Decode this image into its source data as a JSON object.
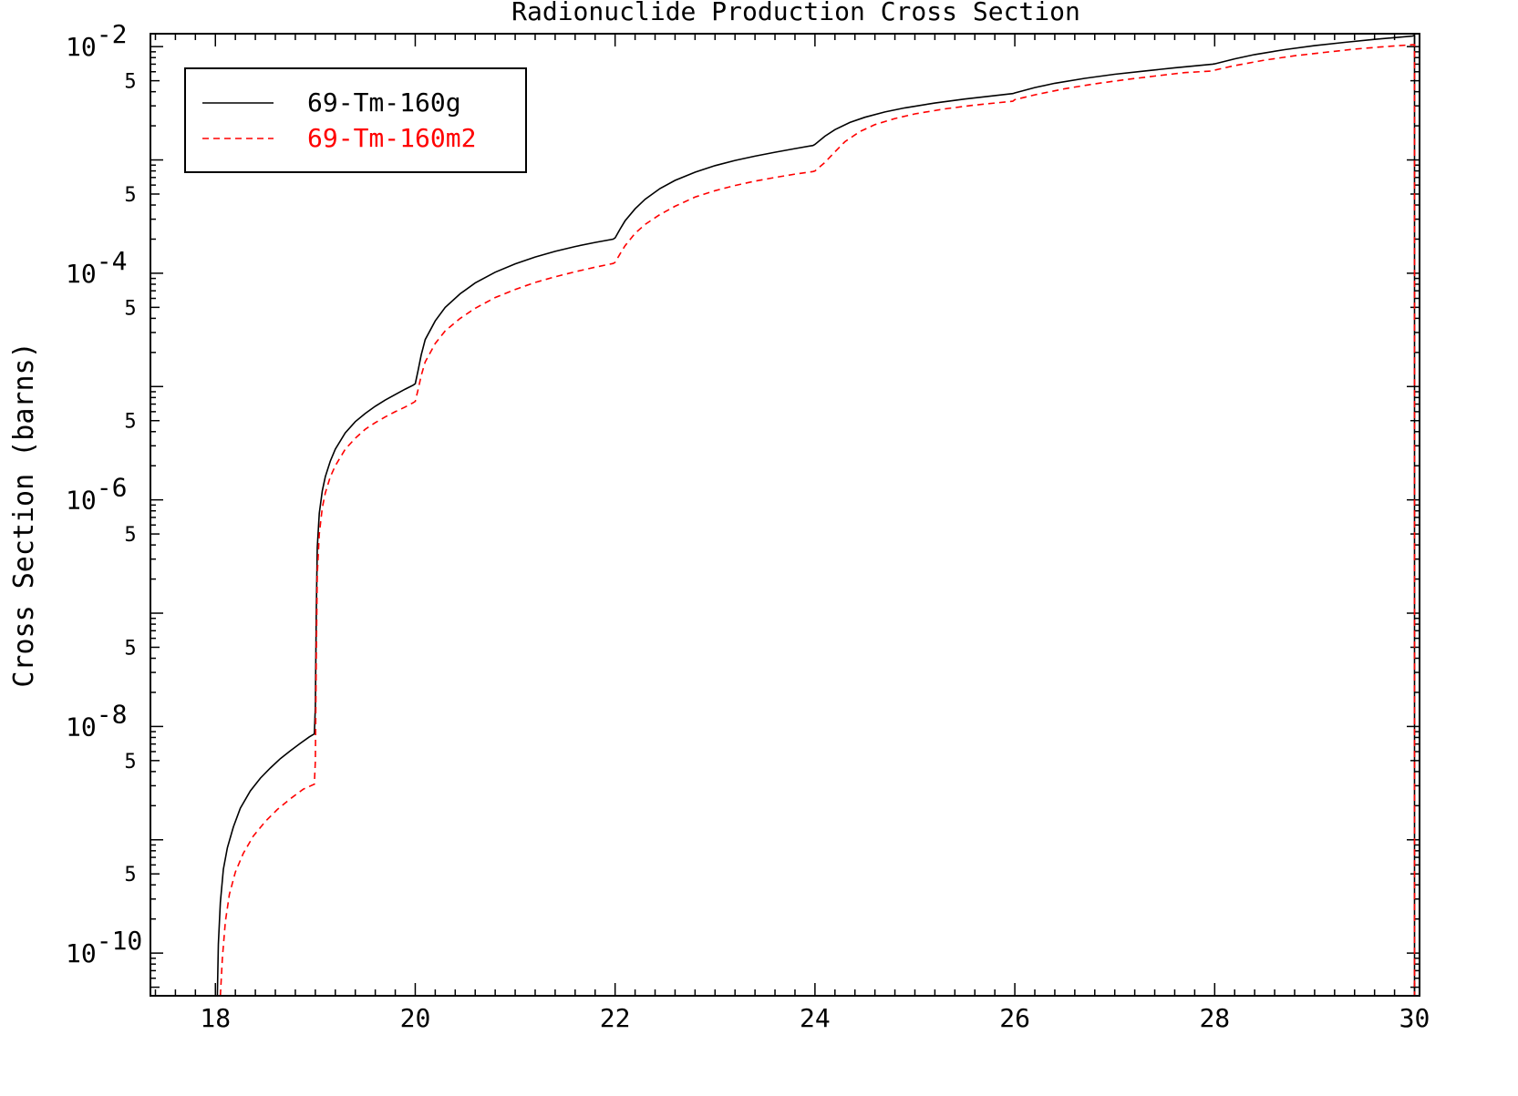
{
  "chart_data": {
    "type": "line",
    "title": "Radionuclide Production Cross Section",
    "xlabel": "",
    "ylabel": "Cross Section (barns)",
    "xlim": [
      17.35,
      30.05
    ],
    "ylim": [
      4.2e-11,
      0.013
    ],
    "y_scale": "log",
    "grid": false,
    "legend_position": "top-left",
    "x_ticks": [
      18,
      20,
      22,
      24,
      26,
      28,
      30
    ],
    "x_tick_labels": [
      "18",
      "20",
      "22",
      "24",
      "26",
      "28",
      "30"
    ],
    "y_decades": [
      {
        "exp": -2,
        "value": 0.01
      },
      {
        "exp": -4,
        "value": 0.0001
      },
      {
        "exp": -6,
        "value": 1e-06
      },
      {
        "exp": -8,
        "value": 1e-08
      },
      {
        "exp": -10,
        "value": 1e-10
      }
    ],
    "y_minor_marks": [
      {
        "value": 0.005,
        "label": "5"
      },
      {
        "value": 0.0005,
        "label": "5"
      },
      {
        "value": 5e-05,
        "label": "5"
      },
      {
        "value": 5e-06,
        "label": "5"
      },
      {
        "value": 5e-07,
        "label": "5"
      },
      {
        "value": 5e-08,
        "label": "5"
      },
      {
        "value": 5e-09,
        "label": "5"
      },
      {
        "value": 5e-10,
        "label": "5"
      }
    ],
    "series": [
      {
        "name": "69-Tm-160g",
        "color": "#000000",
        "style": "solid",
        "x": [
          18.02,
          18.03,
          18.05,
          18.08,
          18.12,
          18.18,
          18.25,
          18.35,
          18.45,
          18.55,
          18.65,
          18.75,
          18.85,
          18.94,
          18.99,
          19.0,
          19.01,
          19.02,
          19.04,
          19.07,
          19.1,
          19.15,
          19.2,
          19.3,
          19.4,
          19.5,
          19.6,
          19.7,
          19.8,
          19.9,
          19.98,
          20.0,
          20.03,
          20.06,
          20.1,
          20.2,
          20.3,
          20.45,
          20.6,
          20.8,
          21.0,
          21.2,
          21.4,
          21.6,
          21.8,
          21.98,
          22.0,
          22.05,
          22.1,
          22.2,
          22.3,
          22.45,
          22.6,
          22.8,
          23.0,
          23.2,
          23.4,
          23.6,
          23.8,
          23.98,
          24.0,
          24.1,
          24.2,
          24.35,
          24.5,
          24.7,
          24.9,
          25.2,
          25.5,
          25.8,
          25.98,
          26.0,
          26.2,
          26.4,
          26.7,
          27.0,
          27.3,
          27.6,
          27.98,
          28.0,
          28.2,
          28.4,
          28.7,
          29.0,
          29.3,
          29.6,
          29.98,
          29.99,
          30.0,
          30.0
        ],
        "y": [
          3e-11,
          1.2e-10,
          2.8e-10,
          5.5e-10,
          8.5e-10,
          1.3e-09,
          1.9e-09,
          2.7e-09,
          3.5e-09,
          4.3e-09,
          5.2e-09,
          6.1e-09,
          7.1e-09,
          8.1e-09,
          8.6e-09,
          1.5e-08,
          1e-07,
          3.8e-07,
          7.6e-07,
          1.2e-06,
          1.6e-06,
          2.2e-06,
          2.8e-06,
          3.9e-06,
          4.9e-06,
          5.8e-06,
          6.7e-06,
          7.6e-06,
          8.5e-06,
          9.5e-06,
          1.03e-05,
          1.06e-05,
          1.4e-05,
          1.9e-05,
          2.6e-05,
          3.8e-05,
          5e-05,
          6.6e-05,
          8.2e-05,
          0.000102,
          0.000121,
          0.000139,
          0.000156,
          0.000172,
          0.000187,
          0.0002,
          0.000205,
          0.000245,
          0.00029,
          0.00037,
          0.00045,
          0.00056,
          0.00066,
          0.00078,
          0.00089,
          0.00099,
          0.00108,
          0.00117,
          0.00126,
          0.00134,
          0.00137,
          0.00162,
          0.00185,
          0.00214,
          0.00238,
          0.00265,
          0.00288,
          0.00318,
          0.00345,
          0.0037,
          0.00385,
          0.0039,
          0.00435,
          0.00475,
          0.00525,
          0.0057,
          0.0061,
          0.0065,
          0.007,
          0.00705,
          0.0078,
          0.0085,
          0.0094,
          0.0102,
          0.0109,
          0.0116,
          0.0124,
          0.0125,
          0.0125,
          3e-11
        ]
      },
      {
        "name": "69-Tm-160m2",
        "color": "#ff0000",
        "style": "dashed",
        "x": [
          18.05,
          18.07,
          18.1,
          18.14,
          18.2,
          18.28,
          18.38,
          18.5,
          18.62,
          18.75,
          18.88,
          18.99,
          19.0,
          19.01,
          19.02,
          19.04,
          19.07,
          19.1,
          19.15,
          19.2,
          19.3,
          19.4,
          19.5,
          19.6,
          19.7,
          19.8,
          19.9,
          19.98,
          20.0,
          20.03,
          20.06,
          20.1,
          20.2,
          20.3,
          20.45,
          20.6,
          20.8,
          21.0,
          21.2,
          21.4,
          21.6,
          21.8,
          21.98,
          22.0,
          22.05,
          22.1,
          22.2,
          22.3,
          22.45,
          22.6,
          22.8,
          23.0,
          23.2,
          23.4,
          23.6,
          23.8,
          23.98,
          24.0,
          24.1,
          24.2,
          24.3,
          24.45,
          24.6,
          24.8,
          25.0,
          25.3,
          25.6,
          25.98,
          26.0,
          26.2,
          26.5,
          26.8,
          27.1,
          27.4,
          27.7,
          27.98,
          28.0,
          28.2,
          28.5,
          28.8,
          29.1,
          29.4,
          29.7,
          29.98,
          29.99,
          30.0,
          30.0
        ],
        "y": [
          3e-11,
          9e-11,
          1.9e-10,
          3.3e-10,
          5.2e-10,
          7.6e-10,
          1.08e-09,
          1.45e-09,
          1.85e-09,
          2.3e-09,
          2.8e-09,
          3.1e-09,
          5e-09,
          4e-08,
          2.2e-07,
          5e-07,
          8.5e-07,
          1.15e-06,
          1.6e-06,
          2e-06,
          2.8e-06,
          3.5e-06,
          4.2e-06,
          4.8e-06,
          5.4e-06,
          6e-06,
          6.6e-06,
          7.2e-06,
          7.4e-06,
          9.5e-06,
          1.25e-05,
          1.65e-05,
          2.4e-05,
          3.1e-05,
          4e-05,
          4.9e-05,
          6.1e-05,
          7.2e-05,
          8.3e-05,
          9.3e-05,
          0.000103,
          0.000113,
          0.000122,
          0.000125,
          0.000148,
          0.000175,
          0.000225,
          0.00027,
          0.00033,
          0.00039,
          0.00047,
          0.000535,
          0.000595,
          0.00065,
          0.0007,
          0.00075,
          0.00079,
          0.0008,
          0.00095,
          0.00118,
          0.00145,
          0.00178,
          0.00205,
          0.00232,
          0.00255,
          0.00282,
          0.00305,
          0.0033,
          0.0034,
          0.00375,
          0.00425,
          0.0047,
          0.0051,
          0.0055,
          0.0059,
          0.0061,
          0.0062,
          0.0068,
          0.0076,
          0.0083,
          0.0089,
          0.0095,
          0.01,
          0.0104,
          0.0104,
          0.0104,
          3e-11
        ]
      }
    ]
  }
}
